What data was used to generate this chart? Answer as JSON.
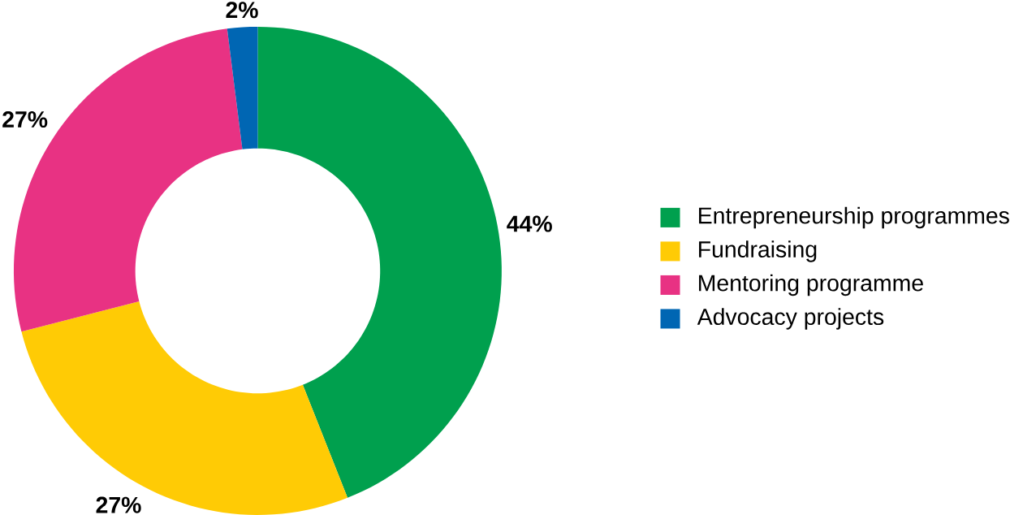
{
  "chart_data": {
    "type": "donut",
    "categories": [
      "Entrepreneurship programmes",
      "Fundraising",
      "Mentoring programme",
      "Advocacy projects"
    ],
    "values": [
      44,
      27,
      27,
      2
    ],
    "value_labels": [
      "44%",
      "27%",
      "27%",
      "2%"
    ],
    "colors": [
      "#00a04e",
      "#ffcb05",
      "#e83283",
      "#0066b3"
    ],
    "legend": "right"
  }
}
